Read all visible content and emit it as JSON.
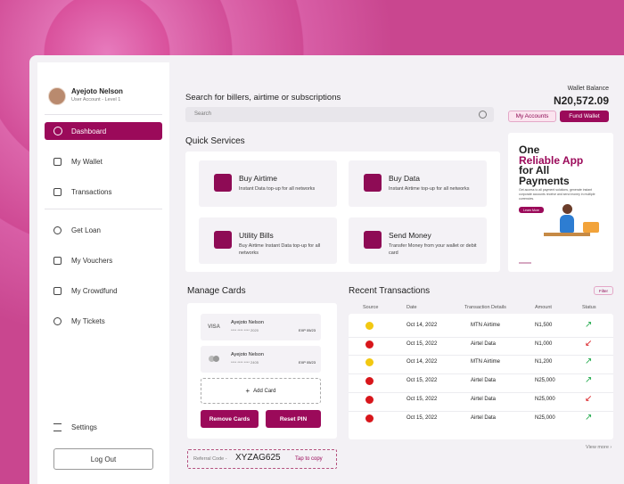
{
  "sidebar": {
    "user_name": "Ayejoto Nelson",
    "user_level": "User Account - Level 1",
    "nav": [
      "Dashboard",
      "My Wallet",
      "Transactions",
      "Get Loan",
      "My Vouchers",
      "My Crowdfund",
      "My Tickets"
    ],
    "settings": "Settings",
    "logout": "Log Out"
  },
  "search": {
    "title": "Search for billers, airtime or subscriptions",
    "placeholder": "Search"
  },
  "wallet": {
    "label": "Wallet Balance",
    "amount": "N20,572.09",
    "my_accounts": "My Accounts",
    "fund_wallet": "Fund Wallet"
  },
  "quick_services": {
    "title": "Quick Services",
    "items": [
      {
        "title": "Buy Airtime",
        "description": "Instant Data top-up for all networks"
      },
      {
        "title": "Buy Data",
        "description": "Instant Airtime top-up for all networks"
      },
      {
        "title": "Utility Bills",
        "description": "Buy Airtime Instant Data top-up for all networks"
      },
      {
        "title": "Send Money",
        "description": "Transfer Money from your wallet or debit card"
      }
    ]
  },
  "promo": {
    "line1": "One",
    "line2": "Reliable App",
    "line3": "for All Payments",
    "text": "Get access to all payment solutions, generate instant corporate accounts receive and send money in multiple currencies.",
    "button": "Learn More"
  },
  "cards": {
    "title": "Manage Cards",
    "items": [
      {
        "brand": "VISA",
        "name": "Ayejoto Nelson",
        "number": "**** **** **** 2020",
        "expiry": "EXP 05/23"
      },
      {
        "name": "Ayejoto Nelson",
        "number": "**** **** **** 2405",
        "expiry": "EXP 05/23"
      }
    ],
    "add": "Add Card",
    "remove": "Remove Cards",
    "reset": "Reset PIN"
  },
  "referral": {
    "label": "Referral Code -",
    "code": "XYZAG625",
    "copy": "Tap to copy"
  },
  "transactions": {
    "title": "Recent Transactions",
    "filter": "Filter",
    "headers": [
      "Source",
      "Date",
      "Transaction Details",
      "Amount",
      "Status"
    ],
    "rows": [
      [
        "Oct 14, 2022",
        "MTN Airtime",
        "N1,500"
      ],
      [
        "Oct 15, 2022",
        "Airtel Data",
        "N1,000"
      ],
      [
        "Oct 14, 2022",
        "MTN Airtime",
        "N1,200"
      ],
      [
        "Oct 15, 2022",
        "Airtel Data",
        "N25,000"
      ],
      [
        "Oct 15, 2022",
        "Airtel Data",
        "N25,000"
      ],
      [
        "Oct 15, 2022",
        "Airtel Data",
        "N25,000"
      ]
    ],
    "view_more": "View more"
  }
}
